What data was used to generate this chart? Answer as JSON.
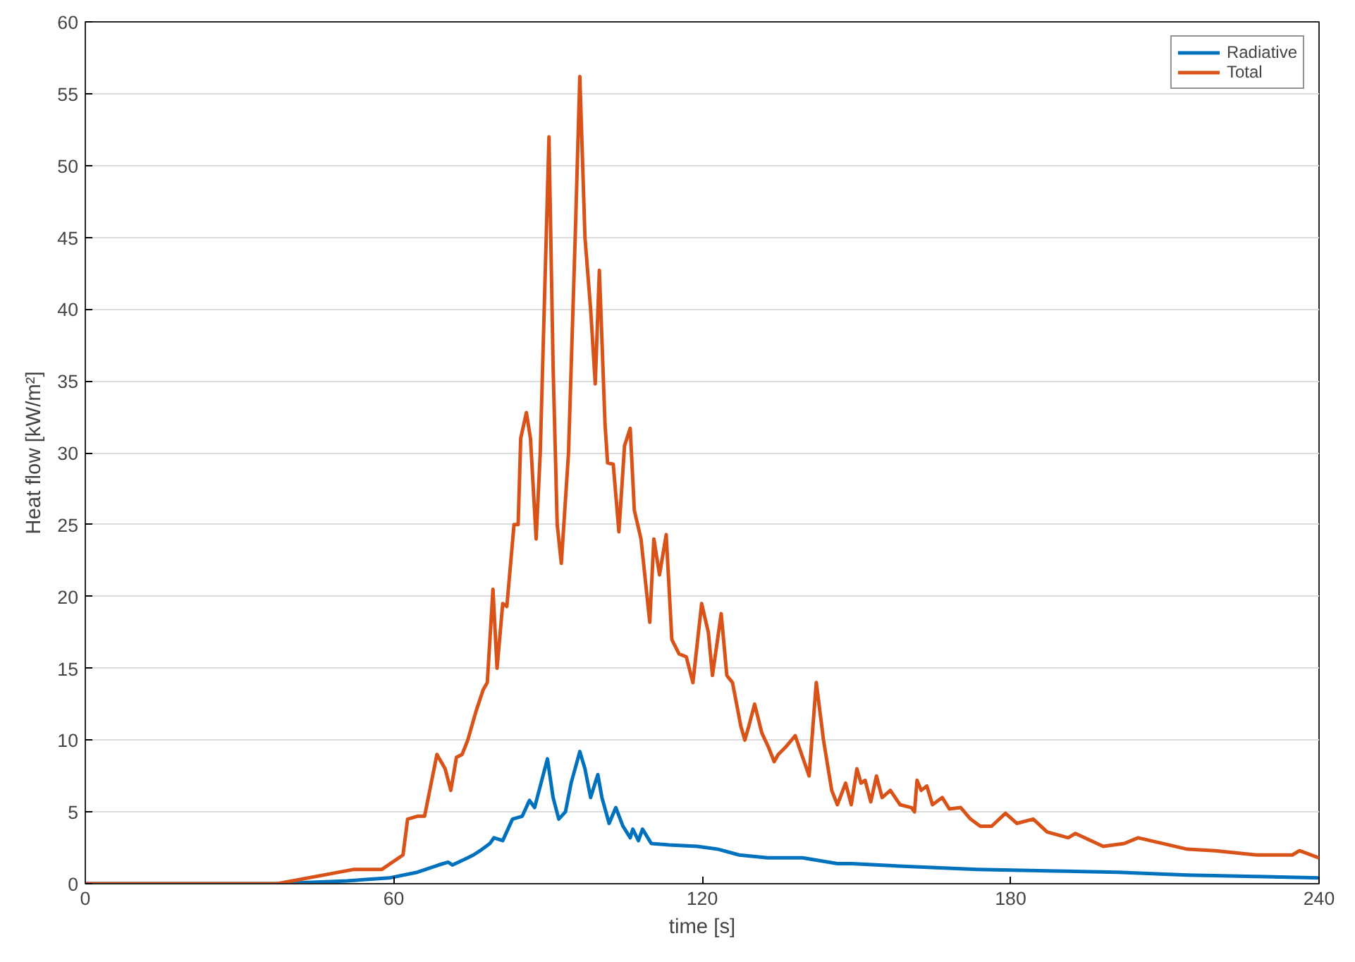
{
  "chart_data": {
    "type": "line",
    "xlabel": "time [s]",
    "ylabel": "Heat flow [kW/m²]",
    "xlim": [
      0,
      240
    ],
    "ylim": [
      0,
      60
    ],
    "xticks": [
      0,
      60,
      120,
      180,
      240
    ],
    "yticks": [
      0,
      5,
      10,
      15,
      20,
      25,
      30,
      35,
      40,
      45,
      50,
      55,
      60
    ],
    "grid": "y",
    "legend": "top right",
    "marker": "none",
    "line_style": "solid",
    "series": [
      {
        "name": "Radiative",
        "color": "#0072bd",
        "x": [
          0,
          37.3,
          50.9,
          59.1,
          64.6,
          68.7,
          70.6,
          71.4,
          74.4,
          75.5,
          76.8,
          78.7,
          79.5,
          81.2,
          83.1,
          85,
          86.4,
          87.4,
          89.9,
          91,
          92.1,
          93.4,
          94.5,
          96.2,
          97.2,
          98.3,
          99.7,
          100.5,
          101.9,
          103.2,
          104.6,
          106,
          106.5,
          107.6,
          108.4,
          110.1,
          113.6,
          119,
          123.1,
          127.2,
          132.7,
          139.5,
          146.3,
          149,
          159.9,
          173.5,
          187.1,
          200.8,
          214.4,
          228,
          240
        ],
        "values": [
          0,
          0,
          0.2,
          0.4,
          0.8,
          1.3,
          1.5,
          1.3,
          1.8,
          2,
          2.3,
          2.8,
          3.2,
          3,
          4.5,
          4.7,
          5.8,
          5.3,
          8.7,
          6,
          4.5,
          5,
          7,
          9.2,
          8,
          6,
          7.6,
          6,
          4.2,
          5.3,
          4,
          3.2,
          3.8,
          3,
          3.8,
          2.8,
          2.7,
          2.6,
          2.4,
          2,
          1.8,
          1.8,
          1.4,
          1.4,
          1.2,
          1,
          0.9,
          0.8,
          0.6,
          0.5,
          0.4
        ]
      },
      {
        "name": "Total",
        "color": "#d95319",
        "x": [
          0,
          37.3,
          52.3,
          57.7,
          61.8,
          62.7,
          64.6,
          66,
          68.4,
          70,
          71.1,
          72.2,
          73.3,
          74.4,
          76,
          77.4,
          78.2,
          79.3,
          80.1,
          81.2,
          82,
          83.4,
          84.2,
          84.7,
          85.8,
          86.6,
          87.7,
          88.5,
          90.2,
          91,
          91.8,
          92.6,
          94,
          95.3,
          96.2,
          97.2,
          98.3,
          99.2,
          100,
          101.1,
          101.6,
          102.7,
          103.8,
          104.9,
          106,
          106.8,
          108.1,
          109.8,
          110.6,
          111.7,
          113,
          114.1,
          115.5,
          116.9,
          118.2,
          119.9,
          121.2,
          122,
          123.7,
          124.8,
          125.9,
          127.5,
          128.3,
          129.1,
          130.2,
          131.6,
          132.9,
          134,
          134.8,
          136.2,
          138.1,
          140.8,
          142.2,
          143.6,
          145.2,
          146.3,
          147.9,
          149,
          150.1,
          150.9,
          151.7,
          152.8,
          153.9,
          155,
          156.6,
          158.5,
          160.7,
          161.3,
          161.8,
          162.6,
          163.7,
          164.8,
          166.7,
          168.1,
          170.3,
          172.2,
          174.1,
          176.3,
          179,
          181.2,
          184.4,
          187.1,
          191.2,
          192.6,
          198,
          202.1,
          204.8,
          214.4,
          219.8,
          228,
          234.8,
          236.2,
          240
        ],
        "values": [
          0,
          0,
          1,
          1,
          2,
          4.5,
          4.7,
          4.7,
          9,
          8,
          6.5,
          8.8,
          9,
          10,
          12,
          13.5,
          14,
          20.5,
          15,
          19.5,
          19.3,
          25,
          25,
          31,
          32.8,
          31,
          24,
          30,
          52,
          36,
          25,
          22.3,
          30,
          45,
          56.2,
          45,
          40,
          34.8,
          42.7,
          32,
          29.3,
          29.2,
          24.5,
          30.5,
          31.7,
          26,
          24,
          18.2,
          24,
          21.5,
          24.3,
          17,
          16,
          15.8,
          14,
          19.5,
          17.5,
          14.5,
          18.8,
          14.5,
          14,
          11,
          10,
          11,
          12.5,
          10.5,
          9.5,
          8.5,
          9,
          9.5,
          10.3,
          7.5,
          14,
          10,
          6.5,
          5.5,
          7,
          5.5,
          8,
          7,
          7.2,
          5.7,
          7.5,
          6,
          6.5,
          5.5,
          5.3,
          5,
          7.2,
          6.5,
          6.8,
          5.5,
          6,
          5.2,
          5.3,
          4.5,
          4,
          4,
          4.9,
          4.2,
          4.5,
          3.6,
          3.2,
          3.5,
          2.6,
          2.8,
          3.2,
          2.4,
          2.3,
          2,
          2,
          2.3,
          1.8
        ]
      }
    ]
  }
}
